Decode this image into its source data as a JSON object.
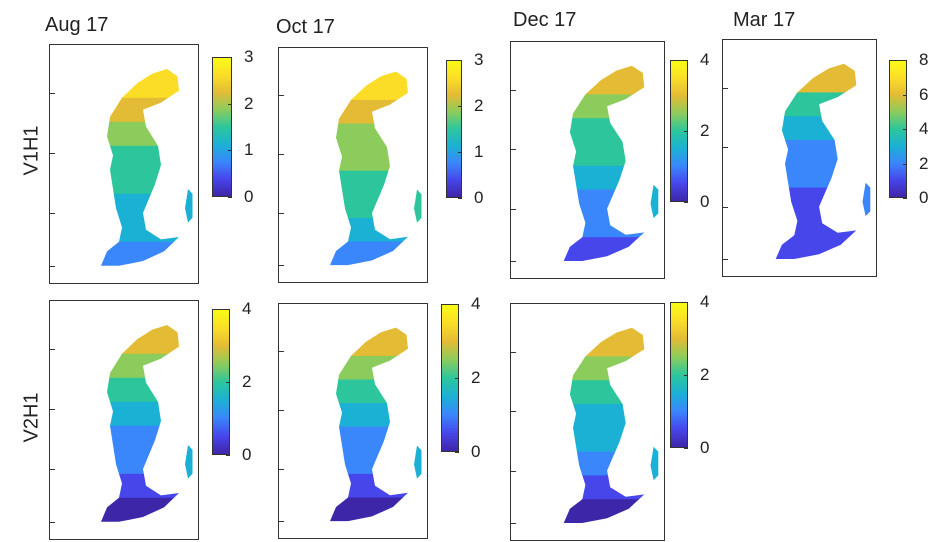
{
  "columns": [
    "Aug 17",
    "Oct 17",
    "Dec 17",
    "Mar 17"
  ],
  "rows": [
    "V1H1",
    "V2H1"
  ],
  "palette": [
    "#3e26a8",
    "#4746eb",
    "#3a87fc",
    "#1bb1d4",
    "#2dc69c",
    "#8ccc5c",
    "#e3bb35",
    "#fbdd28",
    "#f9fb15"
  ],
  "chart_data": [
    {
      "type": "heatmap",
      "row": "V1H1",
      "column": "Aug 17",
      "colorbar_ticks": [
        "0",
        "1",
        "2",
        "3"
      ],
      "clim": [
        0,
        3
      ],
      "region_values": [
        2.5,
        2.2,
        1.9,
        1.5,
        1.4,
        1.2,
        1.0,
        1.2,
        0.9
      ]
    },
    {
      "type": "heatmap",
      "row": "V1H1",
      "column": "Oct 17",
      "colorbar_ticks": [
        "0",
        "1",
        "2",
        "3"
      ],
      "clim": [
        0,
        3
      ],
      "region_values": [
        2.6,
        2.2,
        2.0,
        1.7,
        1.5,
        1.4,
        1.2,
        1.4,
        0.8
      ]
    },
    {
      "type": "heatmap",
      "row": "V1H1",
      "column": "Dec 17",
      "colorbar_ticks": [
        "0",
        "2",
        "4"
      ],
      "clim": [
        0,
        4
      ],
      "region_values": [
        3.2,
        2.3,
        2.1,
        1.8,
        1.5,
        1.2,
        0.8,
        1.4,
        0.4
      ]
    },
    {
      "type": "heatmap",
      "row": "V1H1",
      "column": "Mar 17",
      "colorbar_ticks": [
        "0",
        "2",
        "4",
        "6",
        "8"
      ],
      "clim": [
        0,
        8
      ],
      "region_values": [
        6.0,
        3.5,
        2.8,
        2.2,
        1.8,
        1.2,
        0.6,
        1.8,
        0.5
      ]
    },
    {
      "type": "heatmap",
      "row": "V2H1",
      "column": "Aug 17",
      "colorbar_ticks": [
        "0",
        "2",
        "4"
      ],
      "clim": [
        0,
        4
      ],
      "region_values": [
        3.0,
        2.3,
        1.9,
        1.5,
        1.1,
        0.8,
        0.5,
        1.5,
        0.2
      ]
    },
    {
      "type": "heatmap",
      "row": "V2H1",
      "column": "Oct 17",
      "colorbar_ticks": [
        "0",
        "2",
        "4"
      ],
      "clim": [
        0,
        4
      ],
      "region_values": [
        3.1,
        2.4,
        2.0,
        1.6,
        1.2,
        0.8,
        0.5,
        1.5,
        0.2
      ]
    },
    {
      "type": "heatmap",
      "row": "V2H1",
      "column": "Dec 17",
      "colorbar_ticks": [
        "0",
        "2",
        "4"
      ],
      "clim": [
        0,
        4
      ],
      "region_values": [
        3.1,
        2.4,
        2.0,
        1.7,
        1.3,
        0.9,
        0.5,
        1.5,
        0.2
      ]
    }
  ]
}
